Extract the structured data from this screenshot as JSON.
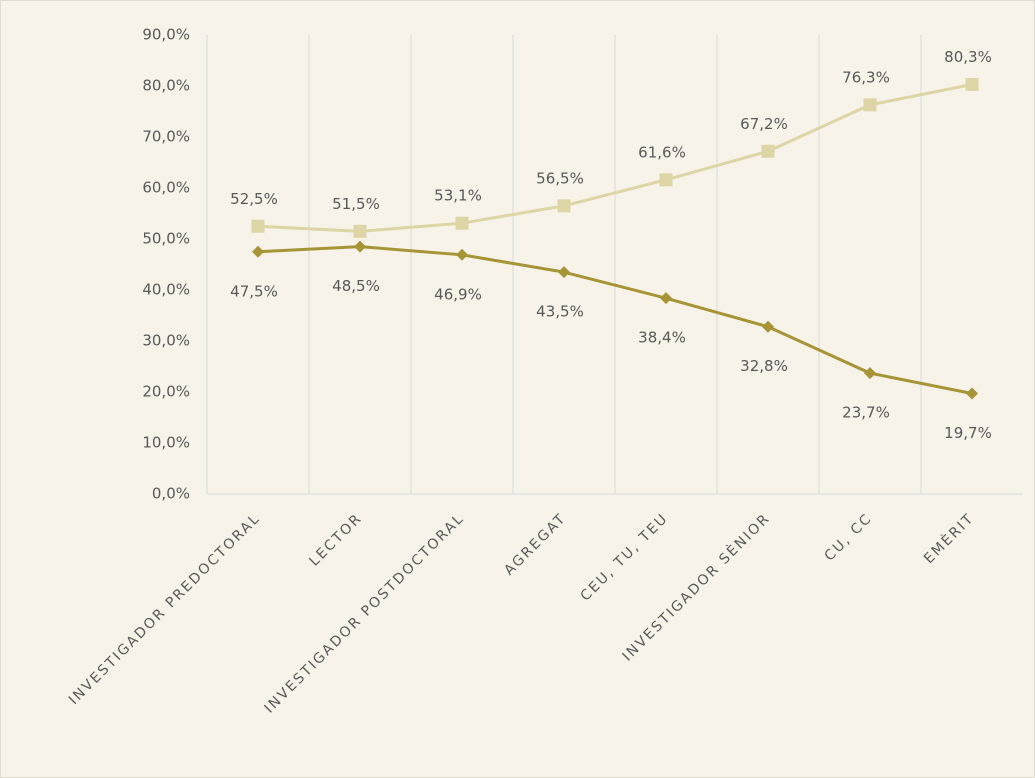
{
  "chart_data": {
    "type": "line",
    "categories": [
      "INVESTIGADOR PREDOCTORAL",
      "LECTOR",
      "INVESTIGADOR POSTDOCTORAL",
      "AGREGAT",
      "CEU, TU, TEU",
      "INVESTIGADOR SÈNIOR",
      "CU, CC",
      "EMÈRIT"
    ],
    "series": [
      {
        "color": "#ddd5a6",
        "marker": "square",
        "label_position": "above",
        "values": [
          52.5,
          51.5,
          53.1,
          56.5,
          61.6,
          67.2,
          76.3,
          80.3
        ],
        "value_labels": [
          "52,5%",
          "51,5%",
          "53,1%",
          "56,5%",
          "61,6%",
          "67,2%",
          "76,3%",
          "80,3%"
        ]
      },
      {
        "color": "#a69436",
        "marker": "diamond",
        "label_position": "below",
        "values": [
          47.5,
          48.5,
          46.9,
          43.5,
          38.4,
          32.8,
          23.7,
          19.7
        ],
        "value_labels": [
          "47,5%",
          "48,5%",
          "46,9%",
          "43,5%",
          "38,4%",
          "32,8%",
          "23,7%",
          "19,7%"
        ]
      }
    ],
    "ylim": [
      0,
      90
    ],
    "yticks": [
      {
        "value": 0,
        "label": "0,0%"
      },
      {
        "value": 10,
        "label": "10,0%"
      },
      {
        "value": 20,
        "label": "20,0%"
      },
      {
        "value": 30,
        "label": "30,0%"
      },
      {
        "value": 40,
        "label": "40,0%"
      },
      {
        "value": 50,
        "label": "50,0%"
      },
      {
        "value": 60,
        "label": "60,0%"
      },
      {
        "value": 70,
        "label": "70,0%"
      },
      {
        "value": 80,
        "label": "80,0%"
      },
      {
        "value": 90,
        "label": "90,0%"
      }
    ],
    "grid": "x"
  }
}
